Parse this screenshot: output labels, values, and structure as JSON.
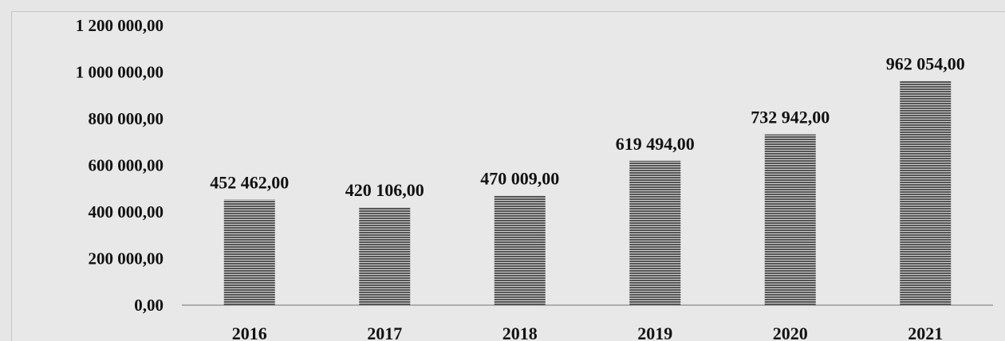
{
  "chart_data": {
    "type": "bar",
    "title": "",
    "xlabel": "",
    "ylabel": "",
    "categories": [
      "2016",
      "2017",
      "2018",
      "2019",
      "2020",
      "2021"
    ],
    "values": [
      452462,
      420106,
      470009,
      619494,
      732942,
      962054
    ],
    "data_labels": [
      "452 462,00",
      "420 106,00",
      "470 009,00",
      "619 494,00",
      "732 942,00",
      "962 054,00"
    ],
    "ylim": [
      0,
      1200000
    ],
    "y_ticks": [
      0,
      200000,
      400000,
      600000,
      800000,
      1000000,
      1200000
    ],
    "y_tick_labels": [
      "0,00",
      "200 000,00",
      "400 000,00",
      "600 000,00",
      "800 000,00",
      "1 000 000,00",
      "1 200 000,00"
    ],
    "grid": false,
    "legend": "none",
    "bar_fill": "horizontal-striped",
    "colors": {
      "background": "#e8e8e8",
      "bar_dark": "#555555",
      "bar_light": "#d0d0d0",
      "axis": "#9a9a9a",
      "text": "#111111"
    }
  }
}
